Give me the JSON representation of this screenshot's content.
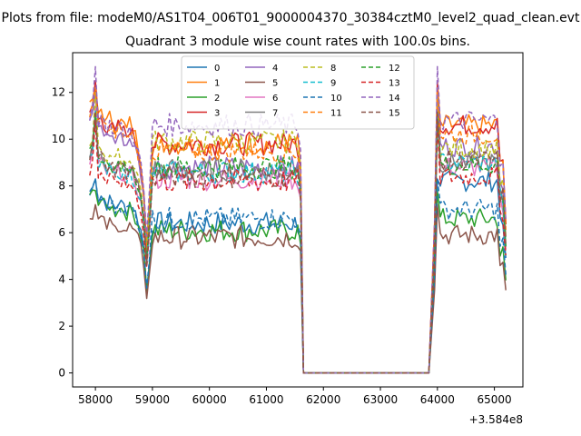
{
  "figure_title": "Plots from file: modeM0/AS1T04_006T01_9000004370_30384cztM0_level2_quad_clean.evt",
  "chart_data": {
    "type": "line",
    "title": "Quadrant 3 module wise count rates with 100.0s bins.",
    "xlabel": "",
    "ylabel": "",
    "x_offset_label": "+3.584e8",
    "xlim": [
      57600,
      65500
    ],
    "ylim": [
      -0.6,
      13.7
    ],
    "x_ticks": [
      58000,
      59000,
      60000,
      61000,
      62000,
      63000,
      64000,
      65000
    ],
    "x_tick_labels": [
      "58000",
      "59000",
      "60000",
      "61000",
      "62000",
      "63000",
      "64000",
      "65000"
    ],
    "y_ticks": [
      0,
      2,
      4,
      6,
      8,
      10,
      12
    ],
    "y_tick_labels": [
      "0",
      "2",
      "4",
      "6",
      "8",
      "10",
      "12"
    ],
    "grid": false,
    "legend_position": "upper-center",
    "legend_columns": 4,
    "segments": [
      {
        "start": 57900,
        "end": 58850,
        "step": 50,
        "trend": [
          1.0,
          1.04,
          1.0,
          0.98,
          1.0,
          0.97,
          0.95,
          0.97,
          0.95,
          0.93,
          0.96,
          0.95,
          0.94,
          0.92,
          0.95,
          0.93,
          0.9,
          0.86,
          0.8,
          0.7
        ]
      },
      {
        "start": 58900,
        "end": 58950,
        "step": 50,
        "trend": [
          0.55,
          0.6
        ]
      },
      {
        "start": 59000,
        "end": 61600,
        "step": 50,
        "trend": "flat-with-noise"
      },
      {
        "start": 61650,
        "end": 63850,
        "step": 50,
        "trend": "zero"
      },
      {
        "start": 63900,
        "end": 65200,
        "step": 50,
        "trend": "recovery"
      }
    ],
    "series": [
      {
        "name": "0",
        "color": "#1f77b4",
        "dashed": false,
        "level_early": 7.6,
        "level_mid": 6.4,
        "level_late": 8.2,
        "peak": 8.3
      },
      {
        "name": "1",
        "color": "#ff7f0e",
        "dashed": false,
        "level_early": 11.3,
        "level_mid": 9.8,
        "level_late": 10.6,
        "peak": 12.2
      },
      {
        "name": "2",
        "color": "#2ca02c",
        "dashed": false,
        "level_early": 7.4,
        "level_mid": 6.1,
        "level_late": 6.6,
        "peak": 7.8
      },
      {
        "name": "3",
        "color": "#d62728",
        "dashed": false,
        "level_early": 11.0,
        "level_mid": 9.8,
        "level_late": 10.6,
        "peak": 12.5
      },
      {
        "name": "4",
        "color": "#9467bd",
        "dashed": false,
        "level_early": 10.6,
        "level_mid": 8.8,
        "level_late": 9.7,
        "peak": 12.0
      },
      {
        "name": "5",
        "color": "#8c564b",
        "dashed": false,
        "level_early": 6.6,
        "level_mid": 5.8,
        "level_late": 5.9,
        "peak": 7.2
      },
      {
        "name": "6",
        "color": "#e377c2",
        "dashed": false,
        "level_early": 9.0,
        "level_mid": 8.3,
        "level_late": 8.8,
        "peak": 11.4
      },
      {
        "name": "7",
        "color": "#7f7f7f",
        "dashed": false,
        "level_early": 9.3,
        "level_mid": 8.7,
        "level_late": 9.0,
        "peak": 11.0
      },
      {
        "name": "8",
        "color": "#bcbd22",
        "dashed": true,
        "level_early": 9.7,
        "level_mid": 9.9,
        "level_late": 9.6,
        "peak": 12.0
      },
      {
        "name": "9",
        "color": "#17becf",
        "dashed": true,
        "level_early": 9.0,
        "level_mid": 8.6,
        "level_late": 9.0,
        "peak": 11.2
      },
      {
        "name": "10",
        "color": "#1f77b4",
        "dashed": true,
        "level_early": 7.5,
        "level_mid": 6.6,
        "level_late": 7.0,
        "peak": 8.3
      },
      {
        "name": "11",
        "color": "#ff7f0e",
        "dashed": true,
        "level_early": 10.9,
        "level_mid": 9.5,
        "level_late": 10.2,
        "peak": 12.2
      },
      {
        "name": "12",
        "color": "#2ca02c",
        "dashed": true,
        "level_early": 9.3,
        "level_mid": 8.8,
        "level_late": 8.9,
        "peak": 11.0
      },
      {
        "name": "13",
        "color": "#d62728",
        "dashed": true,
        "level_early": 8.6,
        "level_mid": 8.2,
        "level_late": 8.4,
        "peak": 10.8
      },
      {
        "name": "14",
        "color": "#9467bd",
        "dashed": true,
        "level_early": 11.0,
        "level_mid": 10.6,
        "level_late": 10.8,
        "peak": 13.1
      },
      {
        "name": "15",
        "color": "#8c564b",
        "dashed": true,
        "level_early": 9.3,
        "level_mid": 8.4,
        "level_late": 9.1,
        "peak": 11.2
      }
    ]
  }
}
